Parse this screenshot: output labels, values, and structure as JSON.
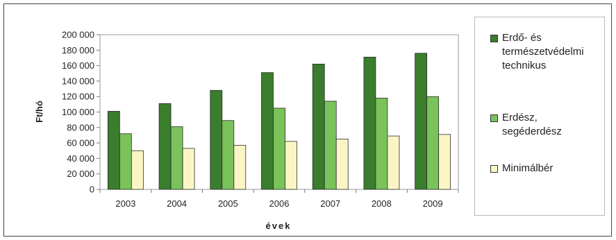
{
  "chart_data": {
    "type": "bar",
    "title": "",
    "xlabel": "évek",
    "ylabel": "Ft/hó",
    "ylim": [
      0,
      200000
    ],
    "yticks": [
      "0",
      "20 000",
      "40 000",
      "60 000",
      "80 000",
      "100 000",
      "120 000",
      "140 000",
      "160 000",
      "180 000",
      "200 000"
    ],
    "categories": [
      "2003",
      "2004",
      "2005",
      "2006",
      "2007",
      "2008",
      "2009"
    ],
    "series": [
      {
        "name": "Erdő- és\ntermészetvédelmi\ntechnikus",
        "color": "#3a7d2c",
        "values": [
          101000,
          111000,
          128000,
          151000,
          162000,
          171000,
          176000
        ]
      },
      {
        "name": "Erdész,\nsegéderdész",
        "color": "#7ac25a",
        "values": [
          72000,
          81000,
          89000,
          105000,
          114000,
          118000,
          120000
        ]
      },
      {
        "name": "Minimálbér",
        "color": "#fbf5c6",
        "values": [
          50000,
          53000,
          57000,
          62000,
          65000,
          69000,
          71000
        ]
      }
    ],
    "grid": false,
    "legend": "right"
  }
}
